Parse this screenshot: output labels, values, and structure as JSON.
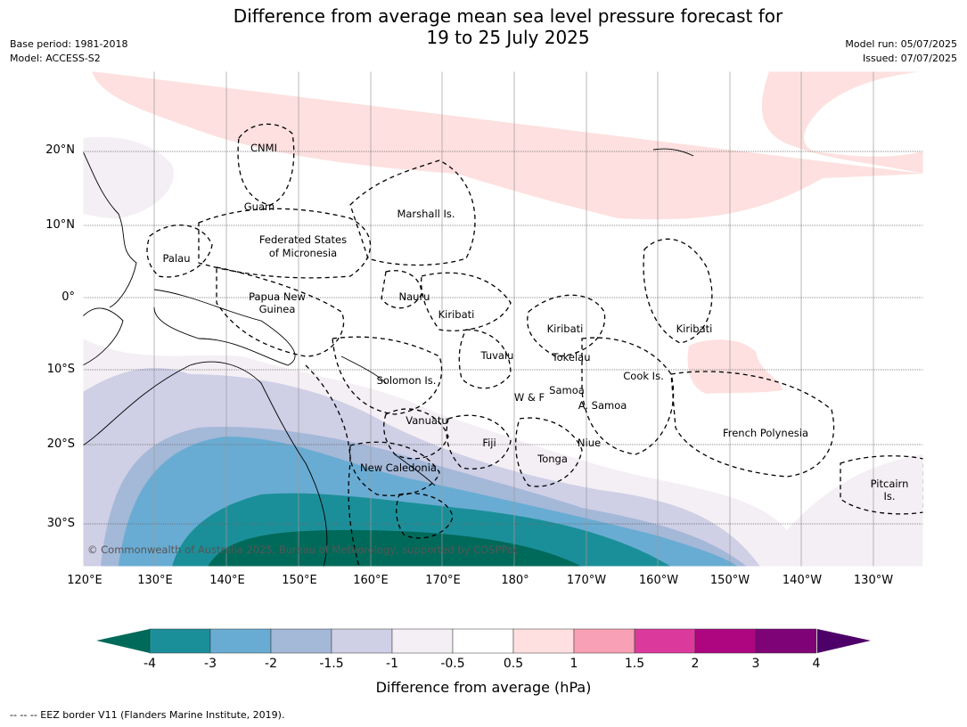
{
  "title_line1": "Difference from average mean sea level pressure forecast for",
  "title_line2": "19 to 25 July 2025",
  "base_period": "Base period: 1981-2018",
  "model": "Model: ACCESS-S2",
  "model_run": "Model run: 05/07/2025",
  "issued": "Issued: 07/07/2025",
  "copyright": "© Commonwealth of Australia 2025, Bureau of Meteorology, supported by COSPPac",
  "lat_labels": [
    "20°N",
    "10°N",
    "0°",
    "10°S",
    "20°S",
    "30°S"
  ],
  "lon_labels": [
    "120°E",
    "130°E",
    "140°E",
    "150°E",
    "160°E",
    "170°E",
    "180°",
    "170°W",
    "160°W",
    "150°W",
    "140°W",
    "130°W"
  ],
  "region_labels": {
    "cnmi": "CNMI",
    "guam": "Guam",
    "marshall": "Marshall Is.",
    "fsm1": "Federated States",
    "fsm2": "of Micronesia",
    "palau": "Palau",
    "png1": "Papua New",
    "png2": "Guinea",
    "nauru": "Nauru",
    "kiribati_w": "Kiribati",
    "kiribati_c": "Kiribati",
    "kiribati_e": "Kiribati",
    "tuvalu": "Tuvalu",
    "tokelau": "Tokelau",
    "cook": "Cook Is.",
    "solomon": "Solomon Is.",
    "samoa": "Samoa",
    "wf": "W & F",
    "asamoa": "A. Samoa",
    "vanuatu": "Vanuatu",
    "fiji": "Fiji",
    "niue": "Niue",
    "fp": "French Polynesia",
    "tonga": "Tonga",
    "newcal": "New Caledonia",
    "pitcairn1": "Pitcairn",
    "pitcairn2": "Is."
  },
  "colorbar": {
    "title": "Difference from average (hPa)",
    "ticks": [
      "-4",
      "-3",
      "-2",
      "-1.5",
      "-1",
      "-0.5",
      "0.5",
      "1",
      "1.5",
      "2",
      "3",
      "4"
    ],
    "colors": [
      "#1b8f99",
      "#69acd3",
      "#a4b8d8",
      "#cfcfe6",
      "#f4eff4",
      "#ffffff",
      "#fde0df",
      "#f8a0b5",
      "#db3a9c",
      "#ad0680",
      "#7e0376"
    ],
    "under_color": "#006a5a",
    "over_color": "#4e0069"
  },
  "footnote": "--  --  -- EEZ border V11 (Flanders Marine Institute, 2019)."
}
